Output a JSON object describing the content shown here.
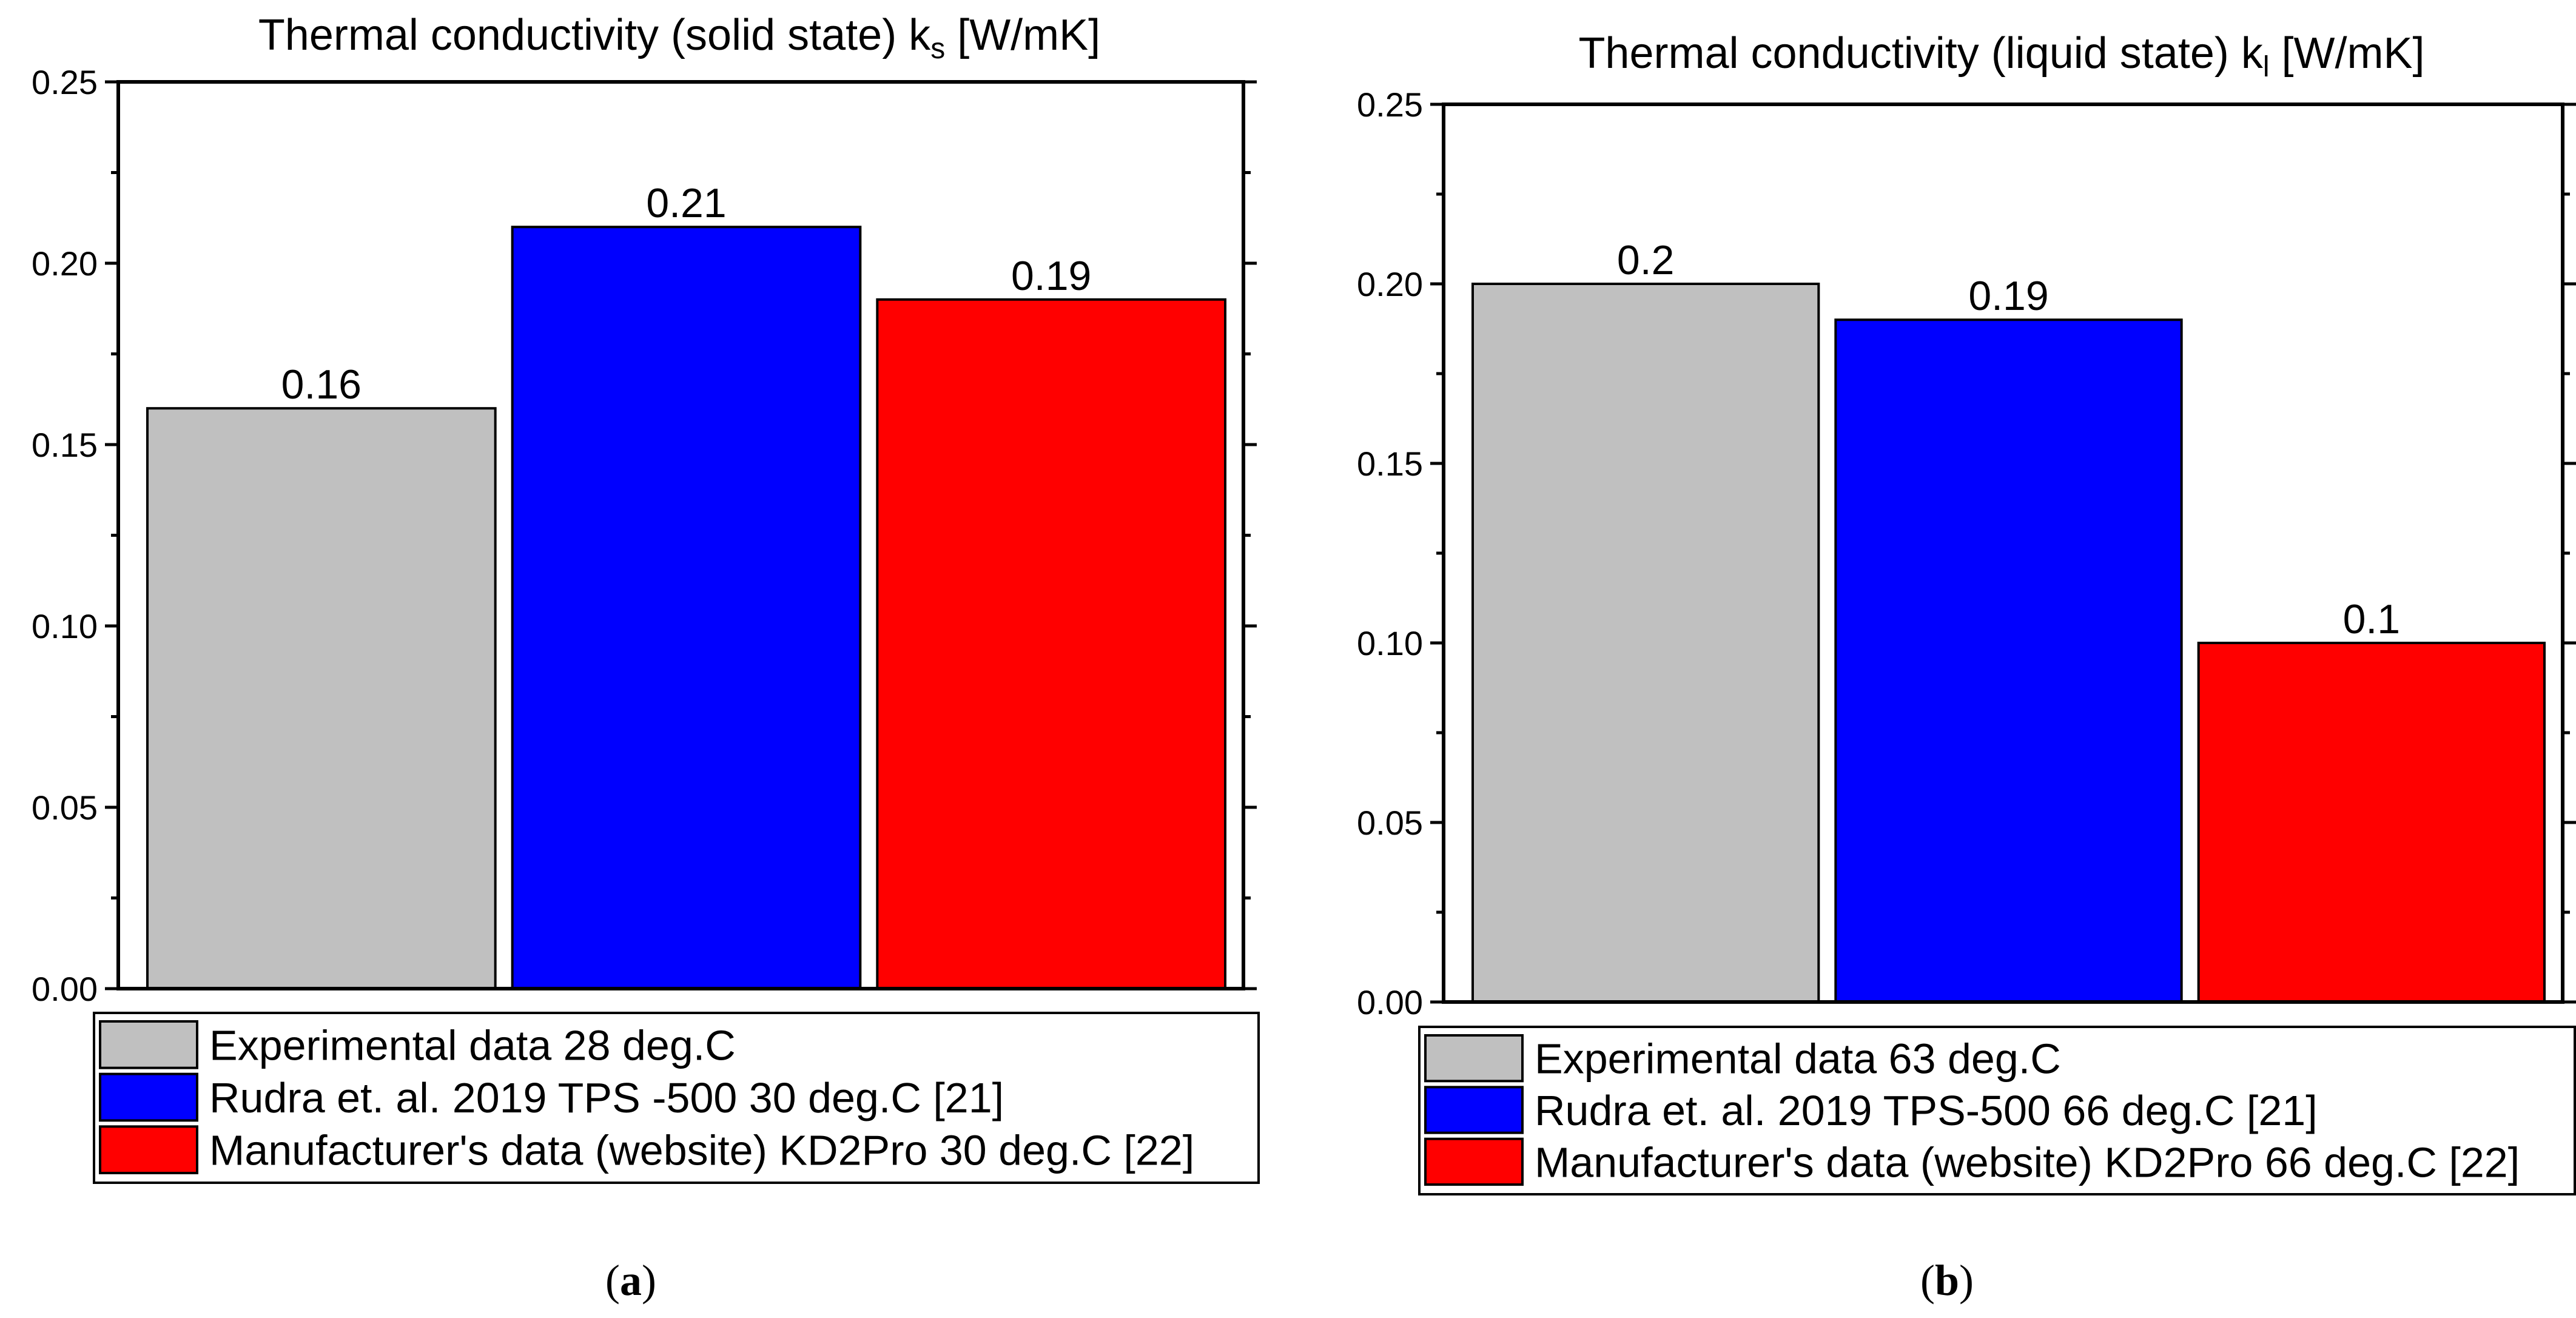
{
  "chart_data": [
    {
      "type": "bar",
      "title": "Thermal conductivity (solid state) k",
      "title_subscript": "s",
      "title_unit": " [W/mK]",
      "xlabel": "",
      "ylabel": "",
      "ylim": [
        0,
        0.25
      ],
      "yticks": [
        0,
        0.05,
        0.1,
        0.15,
        0.2,
        0.25
      ],
      "ytick_labels": [
        "0.00",
        "0.05",
        "0.10",
        "0.15",
        "0.20",
        "0.25"
      ],
      "categories": [
        "Experimental data 28 deg.C",
        "Rudra et. al. 2019 TPS -500 30 deg.C [21]",
        "Manufacturer's data (website) KD2Pro 30 deg.C [22]"
      ],
      "values": [
        0.16,
        0.21,
        0.19
      ],
      "value_labels": [
        "0.16",
        "0.21",
        "0.19"
      ],
      "colors": [
        "#c0c0c0",
        "#0000ff",
        "#ff0000"
      ],
      "legend_position": "bottom",
      "caption_open": "(",
      "caption": "a",
      "caption_close": ")"
    },
    {
      "type": "bar",
      "title": "Thermal conductivity (liquid state) k",
      "title_subscript": "l",
      "title_unit": " [W/mK]",
      "xlabel": "",
      "ylabel": "",
      "ylim": [
        0,
        0.25
      ],
      "yticks": [
        0,
        0.05,
        0.1,
        0.15,
        0.2,
        0.25
      ],
      "ytick_labels": [
        "0.00",
        "0.05",
        "0.10",
        "0.15",
        "0.20",
        "0.25"
      ],
      "categories": [
        "Experimental data 63 deg.C",
        "Rudra et. al. 2019 TPS-500 66 deg.C [21]",
        "Manufacturer's data (website) KD2Pro 66 deg.C [22]"
      ],
      "values": [
        0.2,
        0.19,
        0.1
      ],
      "value_labels": [
        "0.2",
        "0.19",
        "0.1"
      ],
      "colors": [
        "#c0c0c0",
        "#0000ff",
        "#ff0000"
      ],
      "legend_position": "bottom",
      "caption_open": "(",
      "caption": "b",
      "caption_close": ")"
    }
  ]
}
